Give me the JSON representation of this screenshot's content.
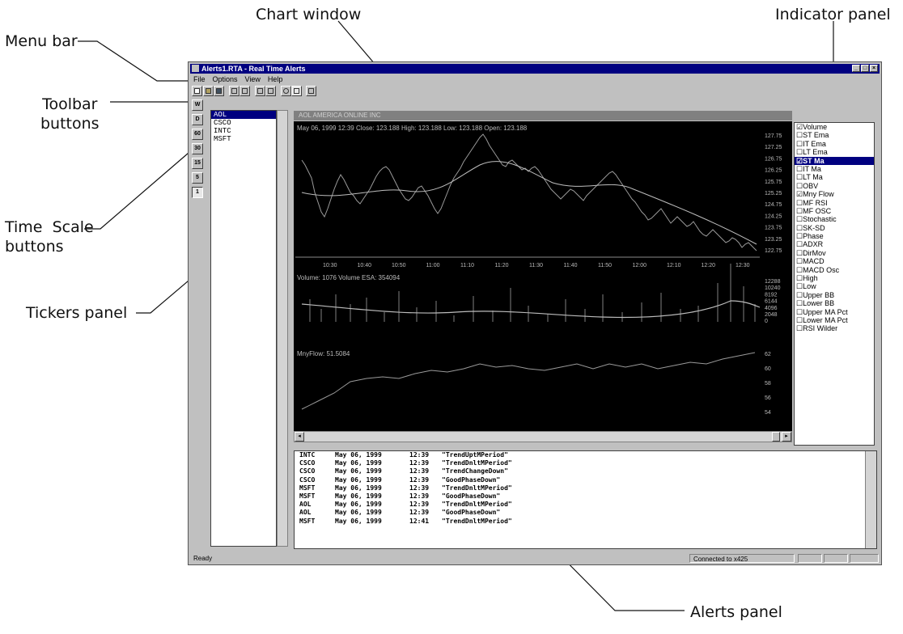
{
  "callouts": {
    "menu_bar": "Menu bar",
    "toolbar_buttons": "Toolbar\nbuttons",
    "time_scale_buttons": "Time  Scale\nbuttons",
    "tickers_panel": "Tickers  panel",
    "chart_window": "Chart  window",
    "indicator_panel": "Indicator  panel",
    "alerts_panel": "Alerts panel"
  },
  "window": {
    "title": "Alerts1.RTA - Real Time Alerts",
    "menu": [
      "File",
      "Options",
      "View",
      "Help"
    ]
  },
  "time_scale_buttons": [
    "W",
    "D",
    "60",
    "30",
    "15",
    "5",
    "1"
  ],
  "tickers": [
    "AOL",
    "CSCO",
    "INTC",
    "MSFT"
  ],
  "chart": {
    "title": "AOL  AMERICA ONLINE INC",
    "price_info": "May 06, 1999 12:39        Close: 123.188        High: 123.188        Low: 123.188        Open: 123.188",
    "volume_info": "Volume: 1076        Volume ESA: 354094",
    "mnyflow_info": "MnyFlow: 51.5084",
    "price_ticks": [
      "127.75",
      "127.25",
      "126.75",
      "126.25",
      "125.75",
      "125.25",
      "124.75",
      "124.25",
      "123.75",
      "123.25",
      "122.75"
    ],
    "time_ticks": [
      "10:30",
      "10:40",
      "10:50",
      "11:00",
      "11:10",
      "11:20",
      "11:30",
      "11:40",
      "11:50",
      "12:00",
      "12:10",
      "12:20",
      "12:30"
    ],
    "volume_ticks": [
      "12288",
      "10240",
      "8192",
      "6144",
      "4096",
      "2048",
      "0"
    ],
    "mnyflow_ticks": [
      "62",
      "60",
      "58",
      "56",
      "54"
    ]
  },
  "indicators": [
    {
      "label": "Volume",
      "checked": true,
      "selected": false
    },
    {
      "label": "ST Ema",
      "checked": false,
      "selected": false
    },
    {
      "label": "IT Ema",
      "checked": false,
      "selected": false
    },
    {
      "label": "LT Ema",
      "checked": false,
      "selected": false
    },
    {
      "label": "ST Ma",
      "checked": true,
      "selected": true
    },
    {
      "label": "IT Ma",
      "checked": false,
      "selected": false
    },
    {
      "label": "LT Ma",
      "checked": false,
      "selected": false
    },
    {
      "label": "OBV",
      "checked": false,
      "selected": false
    },
    {
      "label": "Mny Flow",
      "checked": true,
      "selected": false
    },
    {
      "label": "MF RSI",
      "checked": false,
      "selected": false
    },
    {
      "label": "MF OSC",
      "checked": false,
      "selected": false
    },
    {
      "label": "Stochastic",
      "checked": false,
      "selected": false
    },
    {
      "label": "SK-SD",
      "checked": false,
      "selected": false
    },
    {
      "label": "Phase",
      "checked": false,
      "selected": false
    },
    {
      "label": "ADXR",
      "checked": false,
      "selected": false
    },
    {
      "label": "DirMov",
      "checked": false,
      "selected": false
    },
    {
      "label": "MACD",
      "checked": false,
      "selected": false
    },
    {
      "label": "MACD Osc",
      "checked": false,
      "selected": false
    },
    {
      "label": "High",
      "checked": false,
      "selected": false
    },
    {
      "label": "Low",
      "checked": false,
      "selected": false
    },
    {
      "label": "Upper BB",
      "checked": false,
      "selected": false
    },
    {
      "label": "Lower BB",
      "checked": false,
      "selected": false
    },
    {
      "label": "Upper MA Pct",
      "checked": false,
      "selected": false
    },
    {
      "label": "Lower MA Pct",
      "checked": false,
      "selected": false
    },
    {
      "label": "RSI Wilder",
      "checked": false,
      "selected": false
    }
  ],
  "alerts": [
    {
      "ticker": "INTC",
      "date": "May 06, 1999",
      "time": "12:39",
      "message": "\"TrendUptMPeriod\""
    },
    {
      "ticker": "CSCO",
      "date": "May 06, 1999",
      "time": "12:39",
      "message": "\"TrendDnltMPeriod\""
    },
    {
      "ticker": "CSCO",
      "date": "May 06, 1999",
      "time": "12:39",
      "message": "\"TrendChangeDown\""
    },
    {
      "ticker": "CSCO",
      "date": "May 06, 1999",
      "time": "12:39",
      "message": "\"GoodPhaseDown\""
    },
    {
      "ticker": "MSFT",
      "date": "May 06, 1999",
      "time": "12:39",
      "message": "\"TrendDnltMPeriod\""
    },
    {
      "ticker": "MSFT",
      "date": "May 06, 1999",
      "time": "12:39",
      "message": "\"GoodPhaseDown\""
    },
    {
      "ticker": "AOL",
      "date": "May 06, 1999",
      "time": "12:39",
      "message": "\"TrendDnltMPeriod\""
    },
    {
      "ticker": "AOL",
      "date": "May 06, 1999",
      "time": "12:39",
      "message": "\"GoodPhaseDown\""
    },
    {
      "ticker": "MSFT",
      "date": "May 06, 1999",
      "time": "12:41",
      "message": "\"TrendDnltMPeriod\""
    }
  ],
  "status": {
    "left": "Ready",
    "connection": "Connected to x425"
  }
}
